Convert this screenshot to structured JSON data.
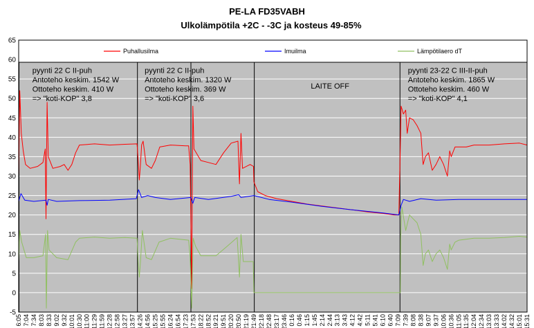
{
  "chart_data": {
    "type": "line",
    "title": "PE-LA FD35VABH",
    "subtitle": "Ulkolämpötila +2C - -3C ja kosteus 49-85%",
    "xlabel": "",
    "ylabel": "",
    "ylim": [
      -5,
      65
    ],
    "yticks": [
      -5,
      0,
      5,
      10,
      15,
      20,
      25,
      30,
      35,
      40,
      45,
      50,
      55,
      60,
      65
    ],
    "grid": true,
    "legend_position": "top",
    "x_tick_labels": [
      "6:05",
      "7:04",
      "7:34",
      "8:03",
      "8:33",
      "9:02",
      "9:32",
      "10:01",
      "10:30",
      "11:00",
      "11:29",
      "11:59",
      "12:28",
      "12:58",
      "13:27",
      "13:57",
      "14:26",
      "14:56",
      "15:25",
      "15:55",
      "16:24",
      "16:54",
      "17:23",
      "17:53",
      "18:22",
      "18:52",
      "19:21",
      "19:51",
      "20:20",
      "20:50",
      "21:19",
      "21:49",
      "22:18",
      "22:48",
      "23:17",
      "23:46",
      "0:16",
      "0:46",
      "1:15",
      "1:45",
      "2:14",
      "2:44",
      "3:13",
      "3:43",
      "4:12",
      "4:42",
      "5:11",
      "5:41",
      "6:10",
      "6:40",
      "7:09",
      "7:39",
      "8:08",
      "8:38",
      "9:07",
      "9:37",
      "10:06",
      "10:36",
      "11:05",
      "11:35",
      "12:04",
      "12:34",
      "13:03",
      "13:33",
      "14:02",
      "14:32",
      "15:01",
      "15:31"
    ],
    "x_range": [
      0,
      67
    ],
    "series": [
      {
        "name": "Puhallusilma",
        "color": "#ff0000",
        "points": [
          [
            0,
            30
          ],
          [
            0.15,
            52
          ],
          [
            0.35,
            41
          ],
          [
            0.6,
            36.5
          ],
          [
            0.9,
            33
          ],
          [
            1.5,
            32
          ],
          [
            2.5,
            32.5
          ],
          [
            3.2,
            33.5
          ],
          [
            3.5,
            37
          ],
          [
            3.6,
            19
          ],
          [
            3.75,
            49
          ],
          [
            3.9,
            35
          ],
          [
            4.5,
            32
          ],
          [
            5.5,
            32.5
          ],
          [
            6,
            33
          ],
          [
            6.5,
            31.5
          ],
          [
            7,
            33
          ],
          [
            7.5,
            36
          ],
          [
            8,
            38
          ],
          [
            10,
            38.3
          ],
          [
            12,
            38
          ],
          [
            14,
            38.2
          ],
          [
            15.6,
            38.3
          ],
          [
            15.75,
            34
          ],
          [
            15.9,
            29
          ],
          [
            16.05,
            33
          ],
          [
            16.2,
            38
          ],
          [
            16.4,
            39
          ],
          [
            16.8,
            33
          ],
          [
            17.5,
            32
          ],
          [
            18,
            34
          ],
          [
            18.6,
            37.5
          ],
          [
            20,
            38
          ],
          [
            22,
            37.8
          ],
          [
            22.4,
            37.8
          ],
          [
            22.6,
            33
          ],
          [
            22.8,
            1
          ],
          [
            22.95,
            48
          ],
          [
            23.1,
            37
          ],
          [
            24,
            34
          ],
          [
            25,
            33.5
          ],
          [
            26,
            33
          ],
          [
            27,
            36
          ],
          [
            28,
            38.5
          ],
          [
            28.9,
            39
          ],
          [
            29.1,
            28
          ],
          [
            29.3,
            41
          ],
          [
            29.5,
            32
          ],
          [
            30.5,
            33
          ],
          [
            30.95,
            32.5
          ],
          [
            31,
            28.5
          ],
          [
            31.5,
            26
          ],
          [
            32.5,
            25
          ],
          [
            34,
            24.2
          ],
          [
            36,
            23.5
          ],
          [
            38,
            22.8
          ],
          [
            40,
            22.3
          ],
          [
            42,
            21.8
          ],
          [
            44,
            21.3
          ],
          [
            46,
            20.8
          ],
          [
            48,
            20.4
          ],
          [
            49.5,
            20
          ],
          [
            50.1,
            20
          ],
          [
            50.3,
            38
          ],
          [
            50.4,
            48
          ],
          [
            50.7,
            46
          ],
          [
            51,
            47
          ],
          [
            51.2,
            41
          ],
          [
            51.5,
            45
          ],
          [
            52,
            44.5
          ],
          [
            52.5,
            43
          ],
          [
            53,
            41
          ],
          [
            53.3,
            33
          ],
          [
            53.6,
            35
          ],
          [
            54,
            36
          ],
          [
            54.5,
            31.5
          ],
          [
            55,
            33
          ],
          [
            55.5,
            35
          ],
          [
            56,
            33
          ],
          [
            56.5,
            30
          ],
          [
            56.8,
            36.5
          ],
          [
            57,
            35
          ],
          [
            57.5,
            37.5
          ],
          [
            58,
            37.5
          ],
          [
            59,
            37.5
          ],
          [
            60,
            38
          ],
          [
            62,
            38
          ],
          [
            64,
            38.3
          ],
          [
            66,
            38.5
          ],
          [
            67,
            38
          ]
        ]
      },
      {
        "name": "Imuilma",
        "color": "#0000ff",
        "points": [
          [
            0,
            23.5
          ],
          [
            0.3,
            25.5
          ],
          [
            0.8,
            23.8
          ],
          [
            2,
            23.5
          ],
          [
            3.6,
            23.8
          ],
          [
            3.75,
            22.5
          ],
          [
            3.9,
            24
          ],
          [
            5,
            23.5
          ],
          [
            8,
            23.7
          ],
          [
            12,
            23.8
          ],
          [
            15.5,
            24.2
          ],
          [
            15.8,
            26.5
          ],
          [
            16.2,
            24.5
          ],
          [
            17,
            25
          ],
          [
            18,
            24.5
          ],
          [
            20,
            24
          ],
          [
            22.7,
            24.5
          ],
          [
            22.95,
            23
          ],
          [
            23.2,
            24.5
          ],
          [
            25,
            24
          ],
          [
            28,
            24.8
          ],
          [
            29,
            25.2
          ],
          [
            29.3,
            24.5
          ],
          [
            31,
            25
          ],
          [
            33,
            24
          ],
          [
            36,
            23.3
          ],
          [
            40,
            22.2
          ],
          [
            44,
            21.3
          ],
          [
            48,
            20.5
          ],
          [
            50.1,
            20
          ],
          [
            50.4,
            22.5
          ],
          [
            50.7,
            24
          ],
          [
            51.5,
            23.5
          ],
          [
            53,
            24.2
          ],
          [
            55,
            23.8
          ],
          [
            58,
            24
          ],
          [
            62,
            24
          ],
          [
            67,
            24
          ]
        ]
      },
      {
        "name": "Lämpötilaero dT",
        "color": "#90c060",
        "points": [
          [
            0,
            8
          ],
          [
            0.15,
            16
          ],
          [
            0.4,
            13
          ],
          [
            0.7,
            11
          ],
          [
            1,
            9
          ],
          [
            2,
            9
          ],
          [
            3.2,
            9.5
          ],
          [
            3.55,
            15
          ],
          [
            3.65,
            -4
          ],
          [
            3.8,
            16
          ],
          [
            4,
            11
          ],
          [
            5,
            9
          ],
          [
            6.5,
            8.5
          ],
          [
            7.5,
            13
          ],
          [
            8,
            14
          ],
          [
            10,
            14.3
          ],
          [
            12,
            14
          ],
          [
            14,
            14.2
          ],
          [
            15.6,
            14
          ],
          [
            15.75,
            8
          ],
          [
            15.9,
            4
          ],
          [
            16.05,
            8
          ],
          [
            16.3,
            16
          ],
          [
            16.8,
            9
          ],
          [
            17.5,
            8.5
          ],
          [
            18.5,
            13
          ],
          [
            20,
            14
          ],
          [
            22.4,
            13.5
          ],
          [
            22.6,
            9
          ],
          [
            22.8,
            -4
          ],
          [
            23,
            14
          ],
          [
            23.3,
            12
          ],
          [
            24,
            9.5
          ],
          [
            26,
            9.5
          ],
          [
            27.5,
            12
          ],
          [
            28.8,
            14.2
          ],
          [
            29.1,
            4
          ],
          [
            29.3,
            15
          ],
          [
            29.6,
            8
          ],
          [
            30.9,
            8
          ],
          [
            31,
            0
          ],
          [
            31.1,
            0
          ],
          [
            50.3,
            0
          ],
          [
            50.35,
            14
          ],
          [
            50.5,
            22
          ],
          [
            51,
            16
          ],
          [
            51.5,
            20
          ],
          [
            52,
            19
          ],
          [
            52.5,
            18
          ],
          [
            53,
            15
          ],
          [
            53.3,
            7
          ],
          [
            53.6,
            10
          ],
          [
            54,
            11
          ],
          [
            54.5,
            8
          ],
          [
            55,
            10
          ],
          [
            55.5,
            11
          ],
          [
            56,
            9
          ],
          [
            56.5,
            6
          ],
          [
            56.8,
            12.5
          ],
          [
            57,
            11
          ],
          [
            57.5,
            13
          ],
          [
            58,
            13.5
          ],
          [
            60,
            14
          ],
          [
            62,
            14
          ],
          [
            64,
            14.2
          ],
          [
            66,
            14.5
          ],
          [
            67,
            14.3
          ]
        ]
      }
    ],
    "vertical_lines": [
      0.05,
      15.65,
      22.7,
      31.05,
      50.25
    ],
    "annotations": [
      {
        "x": 1.8,
        "y": 56.5,
        "lines": [
          "pyynti 22 C II-puh",
          "Antoteho keskim. 1542 W",
          "Ottoteho keskim. 410 W",
          "=> \"koti-KOP\" 3,8"
        ]
      },
      {
        "x": 16.6,
        "y": 56.5,
        "lines": [
          "pyynti 22 C II-puh",
          "Antoteho keskim. 1320 W",
          "Ottoteho keskim. 369 W",
          "=> \"koti-KOP\" 3,6"
        ]
      },
      {
        "x": 38.5,
        "y": 52.5,
        "lines": [
          "LAITE OFF"
        ]
      },
      {
        "x": 51.3,
        "y": 56.5,
        "lines": [
          "pyynti 23-22 C III-II-puh",
          "Antoteho keskim. 1865 W",
          "Ottoteho keskim. 460 W",
          "=> \"koti-KOP\" 4,1"
        ]
      }
    ]
  }
}
